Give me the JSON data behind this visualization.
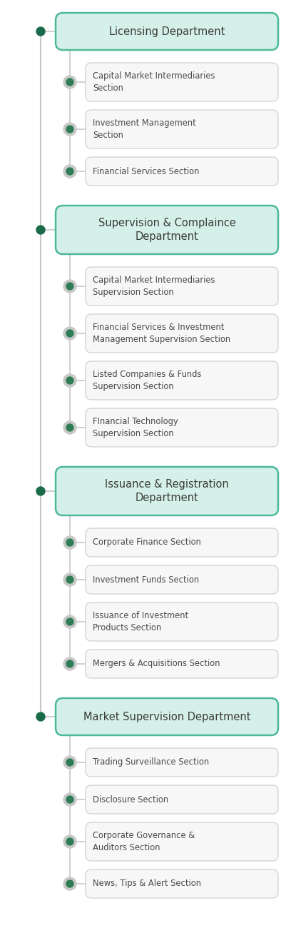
{
  "bg_color": "#ffffff",
  "dept_box_fill": "#d4f0e8",
  "dept_box_edge": "#4db89a",
  "section_box_fill": "#f7f7f7",
  "section_box_edge": "#d5d5d5",
  "dept_text_color": "#3a3a3a",
  "section_text_color": "#4a4a4a",
  "dept_dot_color": "#1a6b4a",
  "section_dot_fill": "#2e7d55",
  "section_dot_ring": "#c8c8c8",
  "line_color": "#c8c8c8",
  "departments": [
    {
      "name": "Licensing Department",
      "two_line": false,
      "sections": [
        {
          "text": "Capital Market Intermediaries\nSection",
          "two_line": true
        },
        {
          "text": "Investment Management\nSection",
          "two_line": true
        },
        {
          "text": "Financial Services Section",
          "two_line": false
        }
      ]
    },
    {
      "name": "Supervision & Complaince\nDepartment",
      "two_line": true,
      "sections": [
        {
          "text": "Capital Market Intermediaries\nSupervision Section",
          "two_line": true
        },
        {
          "text": "Financial Services & Investment\nManagement Supervision Section",
          "two_line": true
        },
        {
          "text": "Listed Companies & Funds\nSupervision Section",
          "two_line": true
        },
        {
          "text": "FInancial Technology\nSupervision Section",
          "two_line": true
        }
      ]
    },
    {
      "name": "Issuance & Registration\nDepartment",
      "two_line": true,
      "sections": [
        {
          "text": "Corporate Finance Section",
          "two_line": false
        },
        {
          "text": "Investment Funds Section",
          "two_line": false
        },
        {
          "text": "Issuance of Investment\nProducts Section",
          "two_line": true
        },
        {
          "text": "Mergers & Acquisitions Section",
          "two_line": false
        }
      ]
    },
    {
      "name": "Market Supervision Department",
      "two_line": false,
      "sections": [
        {
          "text": "Trading Surveillance Section",
          "two_line": false
        },
        {
          "text": "Disclosure Section",
          "two_line": false
        },
        {
          "text": "Corporate Governance &\nAuditors Section",
          "two_line": true
        },
        {
          "text": "News, Tips & Alert Section",
          "two_line": false
        }
      ]
    }
  ]
}
